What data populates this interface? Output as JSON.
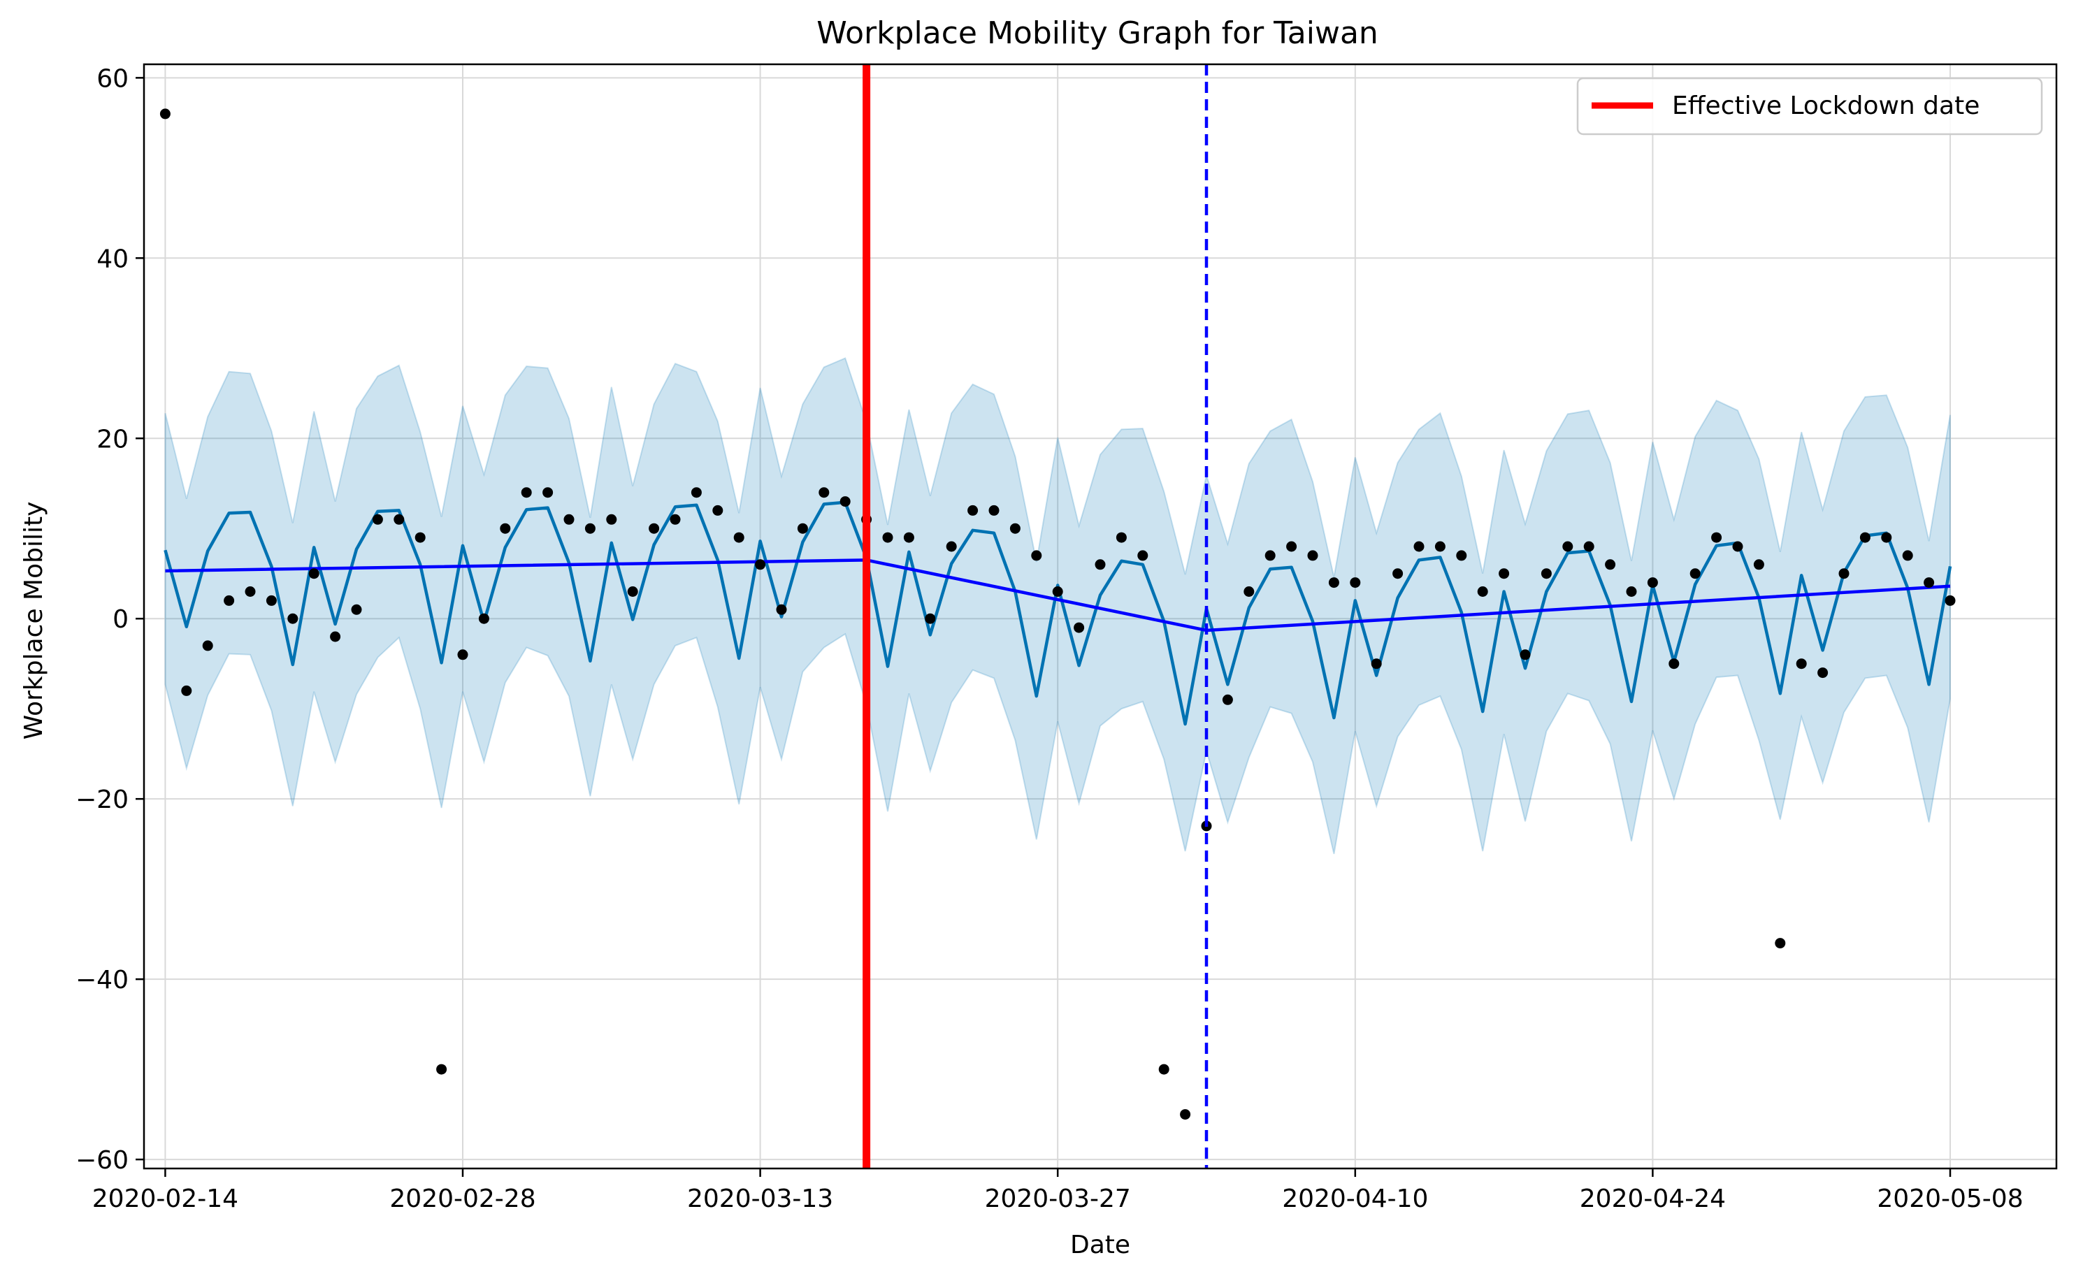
{
  "chart_data": {
    "type": "line",
    "title": "Workplace Mobility Graph for Taiwan",
    "xlabel": "Date",
    "ylabel": "Workplace Mobility",
    "x_start": "2020-02-14",
    "x_end": "2020-05-08",
    "xlim": [
      "2020-02-13",
      "2020-05-13"
    ],
    "ylim": [
      -61,
      61.5
    ],
    "x_ticks": [
      "2020-02-14",
      "2020-02-28",
      "2020-03-13",
      "2020-03-27",
      "2020-04-10",
      "2020-04-24",
      "2020-05-08"
    ],
    "y_ticks": [
      60,
      40,
      20,
      0,
      -20,
      -40,
      -60
    ],
    "y_tick_labels": [
      "60",
      "40",
      "20",
      "0",
      "−20",
      "−40",
      "−60"
    ],
    "grid": true,
    "legend": {
      "position": "top-right",
      "entries": [
        {
          "label": "Effective Lockdown date",
          "color": "#ff0000"
        }
      ]
    },
    "lockdown_date": "2020-03-18",
    "changepoint_date": "2020-04-03",
    "colors": {
      "observed": "#000000",
      "forecast": "#0072b2",
      "band": "#0072b2",
      "trend": "#0000ff",
      "lockdown": "#ff0000",
      "changepoint": "#0000ff"
    },
    "observed": [
      56,
      -8,
      -3,
      2,
      3,
      2,
      0,
      5,
      -2,
      1,
      11,
      11,
      9,
      -50,
      -4,
      0,
      10,
      14,
      14,
      11,
      10,
      11,
      3,
      10,
      11,
      14,
      12,
      9,
      6,
      1,
      10,
      14,
      13,
      11,
      9,
      9,
      0,
      8,
      12,
      12,
      10,
      7,
      3,
      -1,
      6,
      9,
      7,
      -50,
      -55,
      -23,
      -9,
      3,
      7,
      8,
      7,
      4,
      4,
      -5,
      5,
      8,
      8,
      7,
      3,
      5,
      -4,
      5,
      8,
      8,
      6,
      3,
      4,
      -5,
      5,
      9,
      8,
      6,
      -36,
      -5,
      -6,
      5,
      9,
      9,
      7,
      4,
      2
    ],
    "forecast": [
      7.6,
      -0.9,
      7.5,
      11.7,
      11.8,
      5.8,
      -5.1,
      7.9,
      -0.6,
      7.7,
      11.9,
      12.0,
      6.0,
      -4.9,
      8.1,
      -0.4,
      7.9,
      12.1,
      12.3,
      6.2,
      -4.7,
      8.4,
      -0.1,
      8.2,
      12.4,
      12.6,
      6.5,
      -4.4,
      8.6,
      0.2,
      8.5,
      12.7,
      12.9,
      6.7,
      -5.3,
      7.4,
      -1.8,
      6.1,
      9.8,
      9.5,
      3.0,
      -8.6,
      3.7,
      -5.2,
      2.6,
      6.4,
      6.0,
      -0.3,
      -11.7,
      1.1,
      -7.3,
      1.2,
      5.5,
      5.7,
      -0.3,
      -11.0,
      2.0,
      -6.3,
      2.3,
      6.5,
      6.8,
      0.7,
      -10.3,
      3.0,
      -5.5,
      3.0,
      7.3,
      7.5,
      1.5,
      -9.2,
      3.7,
      -4.8,
      3.8,
      8.1,
      8.4,
      2.3,
      -8.3,
      4.8,
      -3.5,
      5.1,
      9.2,
      9.5,
      3.4,
      -7.3,
      5.8
    ],
    "upper": [
      22.8,
      13.3,
      22.4,
      27.4,
      27.2,
      20.8,
      10.6,
      23.0,
      13.0,
      23.3,
      26.9,
      28.1,
      20.7,
      11.3,
      23.6,
      16.0,
      24.8,
      28.0,
      27.8,
      22.2,
      11.2,
      25.7,
      14.7,
      23.8,
      28.3,
      27.4,
      21.9,
      11.7,
      25.6,
      15.8,
      23.8,
      27.9,
      28.9,
      21.8,
      10.4,
      23.2,
      13.6,
      22.8,
      26.0,
      24.9,
      18.0,
      6.3,
      20.1,
      10.3,
      18.2,
      21.0,
      21.1,
      14.1,
      4.9,
      15.9,
      8.3,
      17.2,
      20.8,
      22.1,
      15.2,
      4.6,
      17.9,
      9.5,
      17.3,
      21.0,
      22.8,
      15.8,
      5.0,
      18.7,
      10.5,
      18.6,
      22.7,
      23.1,
      17.3,
      6.4,
      19.6,
      11.0,
      20.2,
      24.2,
      23.1,
      17.7,
      7.4,
      20.7,
      12.1,
      20.8,
      24.6,
      24.8,
      19.0,
      8.6,
      22.6
    ],
    "lower": [
      -7.3,
      -16.6,
      -8.5,
      -3.9,
      -4.0,
      -10.2,
      -20.8,
      -8.1,
      -15.9,
      -8.4,
      -4.3,
      -2.1,
      -10.0,
      -21.0,
      -8.1,
      -15.9,
      -7.1,
      -3.2,
      -4.1,
      -8.6,
      -19.7,
      -7.3,
      -15.6,
      -7.3,
      -3.0,
      -2.1,
      -9.8,
      -20.6,
      -7.6,
      -15.6,
      -5.9,
      -3.2,
      -1.7,
      -9.6,
      -21.4,
      -8.3,
      -16.9,
      -9.3,
      -5.7,
      -6.6,
      -13.5,
      -24.5,
      -11.4,
      -20.5,
      -11.9,
      -10.0,
      -9.2,
      -15.6,
      -25.8,
      -14.7,
      -22.6,
      -15.4,
      -9.8,
      -10.5,
      -15.9,
      -26.1,
      -12.5,
      -20.8,
      -13.1,
      -9.6,
      -8.6,
      -14.5,
      -25.8,
      -12.8,
      -22.5,
      -12.5,
      -8.3,
      -9.1,
      -13.9,
      -24.7,
      -12.4,
      -20.0,
      -11.7,
      -6.5,
      -6.3,
      -13.5,
      -22.3,
      -10.9,
      -18.2,
      -10.4,
      -6.6,
      -6.3,
      -12.1,
      -22.6,
      -8.9
    ],
    "trend": [
      {
        "date": "2020-02-14",
        "value": 5.3
      },
      {
        "date": "2020-03-18",
        "value": 6.5
      },
      {
        "date": "2020-04-03",
        "value": -1.3
      },
      {
        "date": "2020-05-08",
        "value": 3.6
      }
    ]
  }
}
